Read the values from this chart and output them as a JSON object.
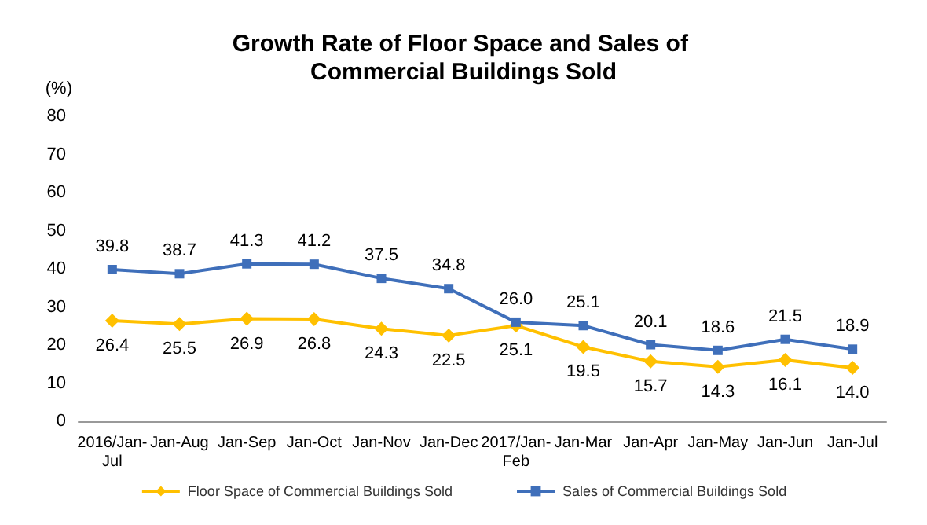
{
  "chart_data": {
    "type": "line",
    "title": "Growth Rate of Floor Space and Sales of Commercial Buildings Sold",
    "ylabel": "(%)",
    "categories": [
      "2016/Jan-Jul",
      "Jan-Aug",
      "Jan-Sep",
      "Jan-Oct",
      "Jan-Nov",
      "Jan-Dec",
      "2017/Jan-Feb",
      "Jan-Mar",
      "Jan-Apr",
      "Jan-May",
      "Jan-Jun",
      "Jan-Jul"
    ],
    "series": [
      {
        "name": "Floor Space of Commercial Buildings Sold",
        "color": "#ffc000",
        "marker": "diamond",
        "values": [
          26.4,
          25.5,
          26.9,
          26.8,
          24.3,
          22.5,
          25.1,
          19.5,
          15.7,
          14.3,
          16.1,
          14.0
        ],
        "value_labels": [
          "26.4",
          "25.5",
          "26.9",
          "26.8",
          "24.3",
          "22.5",
          "25.1",
          "19.5",
          "15.7",
          "14.3",
          "16.1",
          "14.0"
        ]
      },
      {
        "name": "Sales of Commercial Buildings Sold",
        "color": "#3f6fba",
        "marker": "square",
        "values": [
          39.8,
          38.7,
          41.3,
          41.2,
          37.5,
          34.8,
          26.0,
          25.1,
          20.1,
          18.6,
          21.5,
          18.9
        ],
        "value_labels": [
          "39.8",
          "38.7",
          "41.3",
          "41.2",
          "37.5",
          "34.8",
          "26.0",
          "25.1",
          "20.1",
          "18.6",
          "21.5",
          "18.9"
        ]
      }
    ],
    "ylim": [
      0,
      80
    ],
    "yticks": [
      0,
      10,
      20,
      30,
      40,
      50,
      60,
      70,
      80
    ],
    "grid": false,
    "legend": "bottom"
  }
}
